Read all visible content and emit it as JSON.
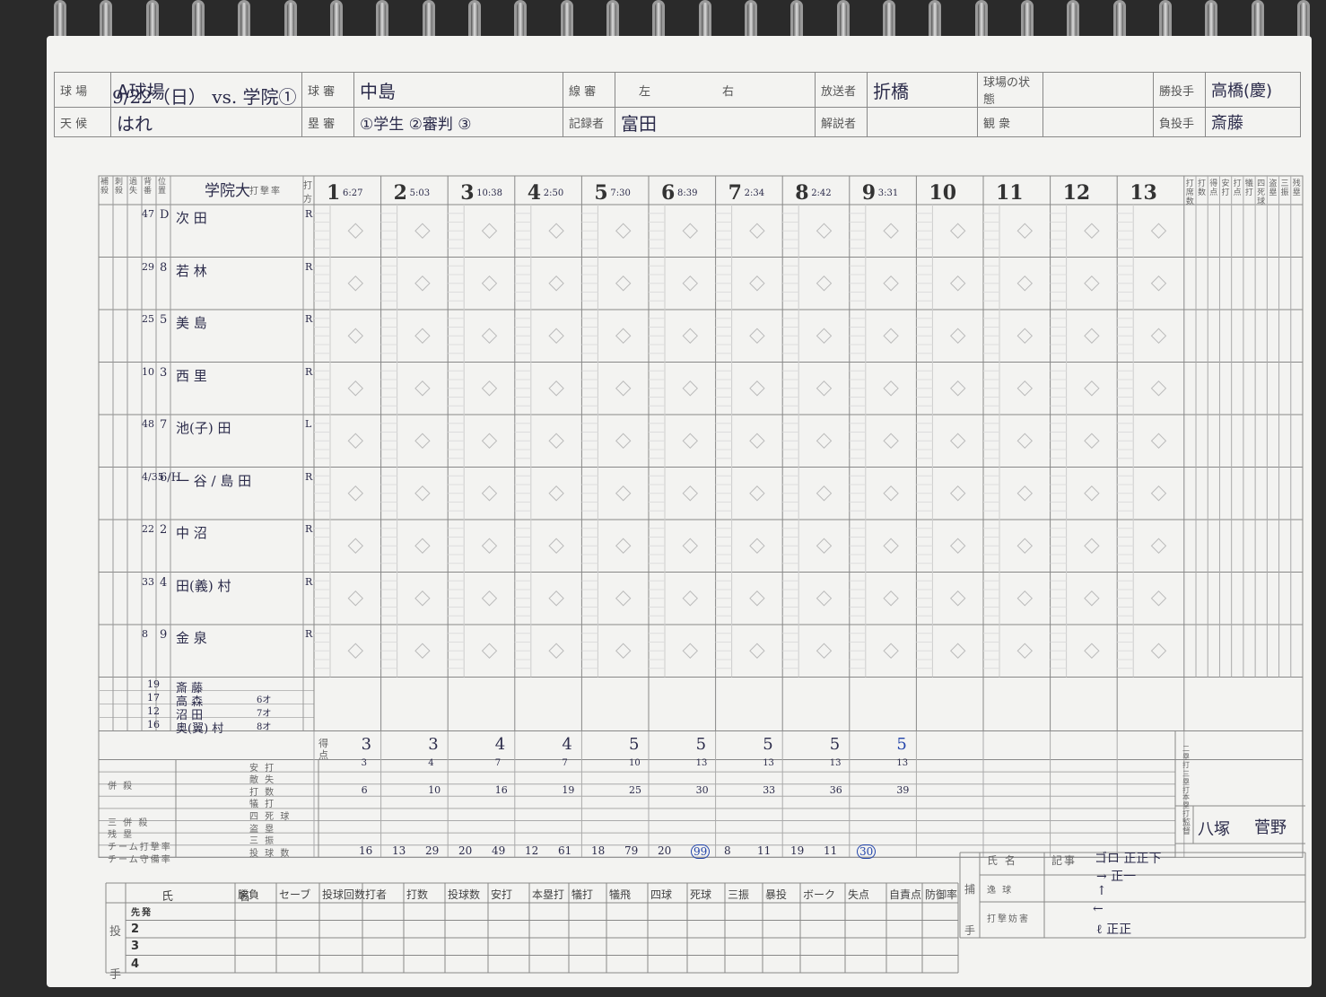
{
  "title": "9/22（日） vs. 学院①",
  "header": {
    "ballpark_label": "球 場",
    "ballpark": "A球場",
    "weather_label": "天 候",
    "weather": "はれ",
    "plate_umpire_label": "球 審",
    "plate_umpire": "中島",
    "base_umpire_label": "塁 審",
    "base_umpires": "①学生 ②審判 ③",
    "line_umpire_label": "線 審",
    "line_left": "左",
    "line_right": "右",
    "scorer_label": "記録者",
    "scorer": "富田",
    "broadcaster_label": "放送者",
    "broadcaster": "折橋",
    "commentator_label": "解説者",
    "commentator": "",
    "field_condition_label": "球場の状態",
    "field_condition": "",
    "spectators_label": "観 衆",
    "spectators": "",
    "win_pitcher_label": "勝投手",
    "win_pitcher": "高橋(慶)",
    "loss_pitcher_label": "負投手",
    "loss_pitcher": "斎藤"
  },
  "team_label": "学院大",
  "batting_avg_label": "打撃率",
  "col_headers": [
    "補殺",
    "刺殺",
    "過失",
    "背番",
    "位置"
  ],
  "bat_side_label": "打方",
  "innings": [
    {
      "n": "1",
      "time": "6:27"
    },
    {
      "n": "2",
      "time": "5:03"
    },
    {
      "n": "3",
      "time": "10:38"
    },
    {
      "n": "4",
      "time": "2:50"
    },
    {
      "n": "5",
      "time": "7:30"
    },
    {
      "n": "6",
      "time": "8:39"
    },
    {
      "n": "7",
      "time": "2:34"
    },
    {
      "n": "8",
      "time": "2:42"
    },
    {
      "n": "9",
      "time": "3:31"
    },
    {
      "n": "10",
      "time": ""
    },
    {
      "n": "11",
      "time": ""
    },
    {
      "n": "12",
      "time": ""
    },
    {
      "n": "13",
      "time": ""
    }
  ],
  "right_headers": [
    "打席数",
    "打数",
    "得点",
    "安打",
    "打点",
    "犠打",
    "四死球",
    "盗塁",
    "三振",
    "残塁"
  ],
  "lineup": [
    {
      "no": "47",
      "pos": "D",
      "name": "次 田",
      "bat": "R"
    },
    {
      "no": "29",
      "pos": "8",
      "name": "若 林",
      "bat": "R"
    },
    {
      "no": "25",
      "pos": "5",
      "name": "美 島",
      "bat": "R"
    },
    {
      "no": "10",
      "pos": "3",
      "name": "西 里",
      "bat": "R"
    },
    {
      "no": "48",
      "pos": "7",
      "name": "池(子) 田",
      "bat": "L"
    },
    {
      "no": "4/35",
      "pos": "6/H",
      "name": "一 谷 / 島 田",
      "bat": "R"
    },
    {
      "no": "22",
      "pos": "2",
      "name": "中 沼",
      "bat": "R"
    },
    {
      "no": "33",
      "pos": "4",
      "name": "田(義) 村",
      "bat": "R"
    },
    {
      "no": "8",
      "pos": "9",
      "name": "金 泉",
      "bat": "R"
    }
  ],
  "pitchers_used": [
    {
      "no": "19",
      "name": "斎 藤",
      "note": ""
    },
    {
      "no": "17",
      "name": "高 森",
      "note": "6オ"
    },
    {
      "no": "12",
      "name": "沼 田",
      "note": "7オ"
    },
    {
      "no": "16",
      "name": "奥(翼) 村",
      "note": "8オ"
    }
  ],
  "runs_label": "得点",
  "runs_cumulative": [
    "3",
    "3",
    "4",
    "4",
    "5",
    "5",
    "5",
    "5",
    "5"
  ],
  "summary_labels": [
    "安 打",
    "敵 失",
    "打 数",
    "犠 打",
    "四 死 球",
    "盗 塁",
    "三 振",
    "投 球 数"
  ],
  "left_summary_labels": [
    "併 殺",
    "三 併 殺",
    "残 塁",
    "チーム打撃率",
    "チーム守備率"
  ],
  "hits_cumulative": [
    "3",
    "4",
    "7",
    "7",
    "10",
    "13",
    "13",
    "13",
    "13"
  ],
  "at_bats_cumulative": [
    "6",
    "10",
    "16",
    "19",
    "25",
    "30",
    "33",
    "36",
    "39"
  ],
  "pitch_counts": [
    "16",
    "13",
    "29",
    "20",
    "49",
    "12",
    "61",
    "18",
    "79",
    "20",
    "99",
    "8",
    "11",
    "19",
    "11",
    "30"
  ],
  "pitcher_table_headers": [
    "氏　名",
    "勝負",
    "セーブ",
    "投球回数",
    "打者",
    "打数",
    "投球数",
    "安打",
    "本塁打",
    "犠打",
    "犠飛",
    "四球",
    "死球",
    "三振",
    "暴投",
    "ボーク",
    "失点",
    "自責点",
    "防御率"
  ],
  "pitcher_rows": [
    "先発",
    "2",
    "3",
    "4"
  ],
  "pitcher_side_label": "投 手",
  "catcher_label": "捕 手",
  "catcher_rows": [
    "氏 名",
    "逸 球",
    "打撃妨害"
  ],
  "notes_label": "記事",
  "notes": [
    "ゴロ 正正下",
    "→ 正一",
    "↑",
    "←",
    "ℓ 正正"
  ],
  "managers_label": "監督",
  "managers": [
    "八塚",
    "菅野"
  ],
  "double_triple_labels": [
    "二塁打",
    "三塁打",
    "本塁打"
  ]
}
